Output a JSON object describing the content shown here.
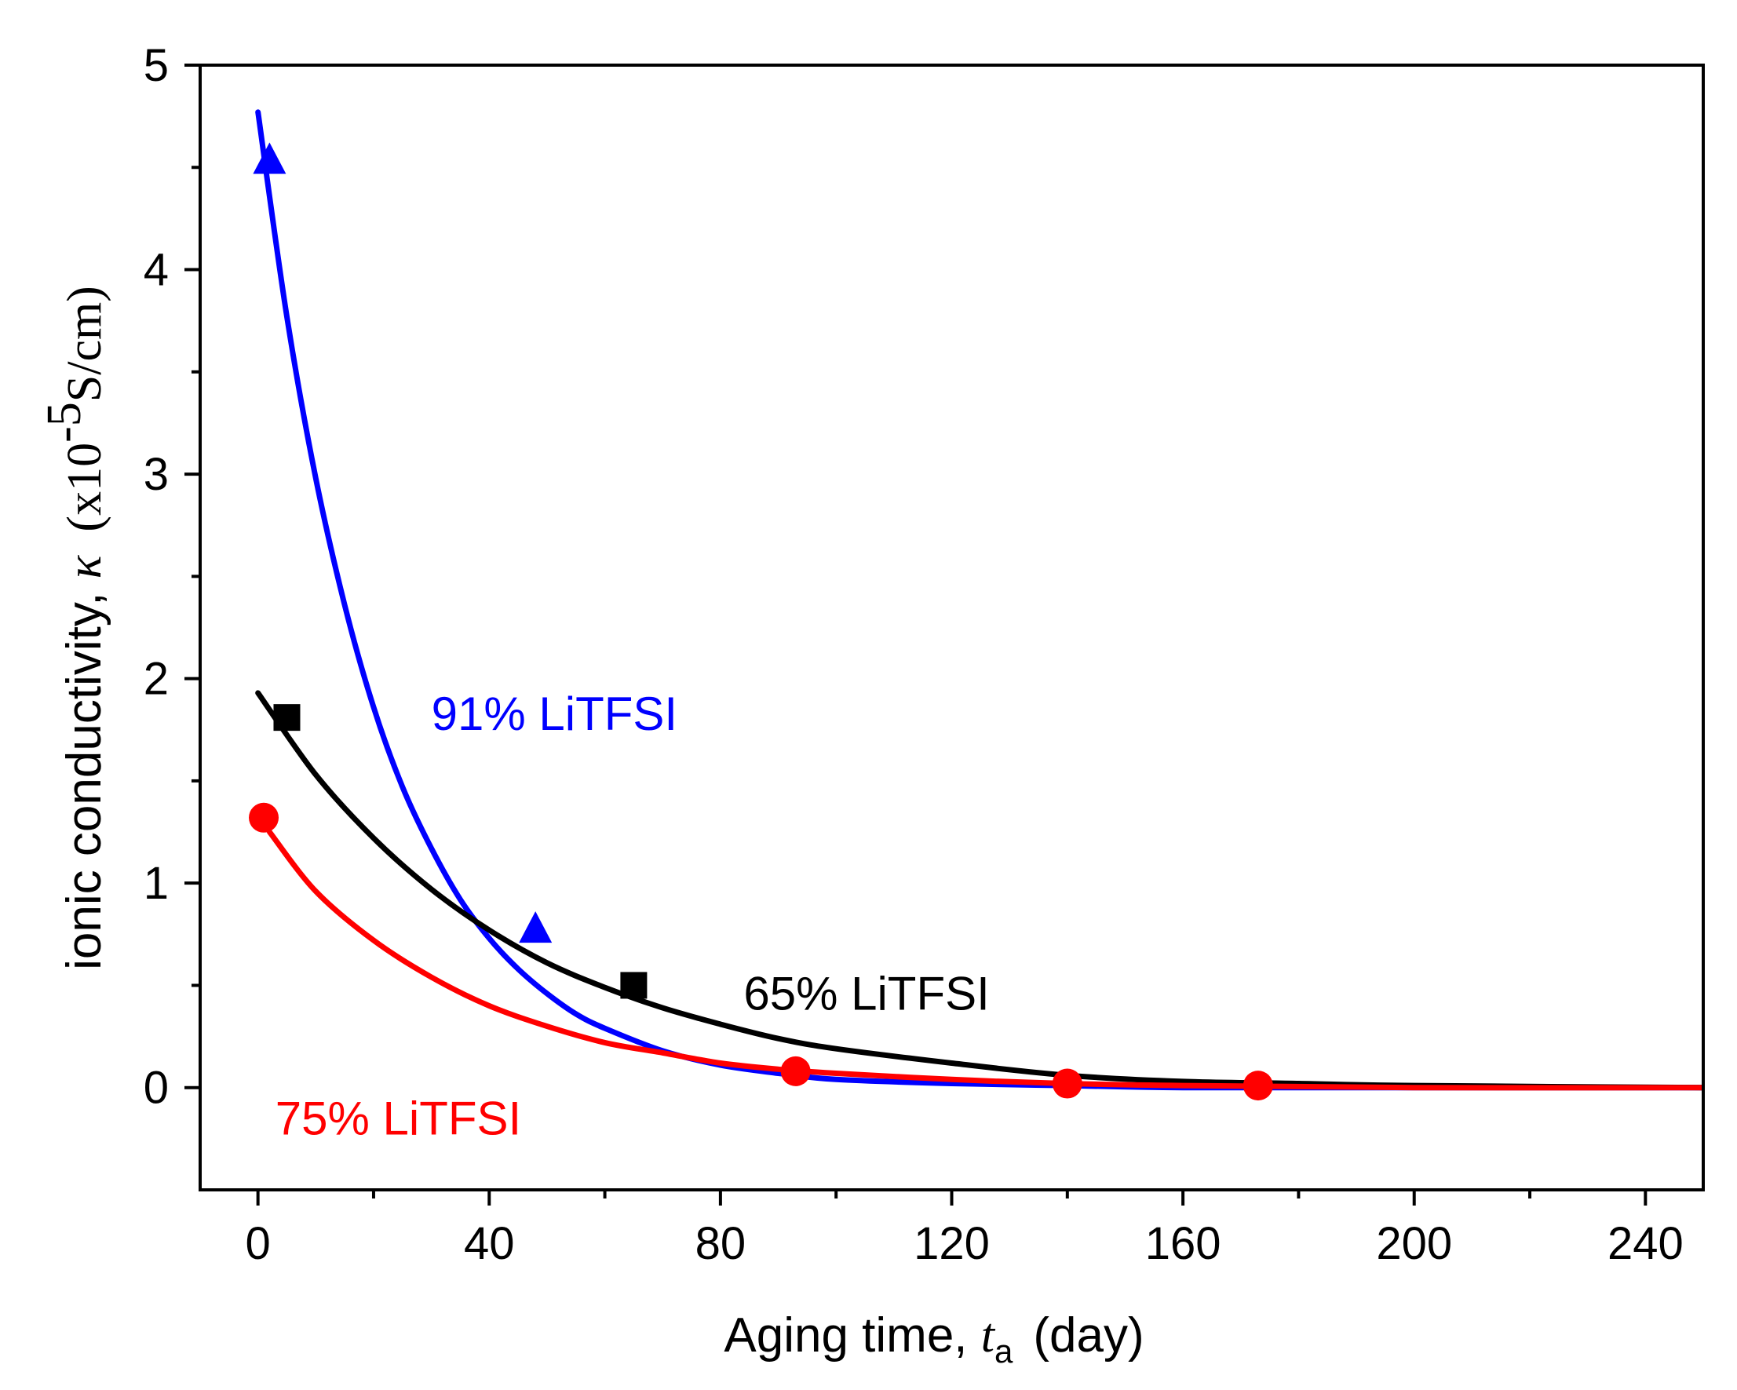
{
  "chart_data": {
    "type": "scatter",
    "title": "",
    "xlabel": {
      "prefix": "Aging time, ",
      "symbol": "t",
      "subscript": "a",
      "unit": "(day)"
    },
    "ylabel": {
      "prefix": "ionic conductivity, ",
      "symbol": "κ",
      "unit_open": "(x10",
      "unit_exp": "-5",
      "unit_close": "S/cm)"
    },
    "xlim": [
      -10,
      250
    ],
    "ylim": [
      -0.5,
      5
    ],
    "xticks": [
      0,
      40,
      80,
      120,
      160,
      200,
      240
    ],
    "xtick_labels": [
      "0",
      "40",
      "80",
      "120",
      "160",
      "200",
      "240"
    ],
    "yticks": [
      0,
      1,
      2,
      3,
      4,
      5
    ],
    "ytick_labels": [
      "0",
      "1",
      "2",
      "3",
      "4",
      "5"
    ],
    "grid": false,
    "series": [
      {
        "name": "91% LiTFSI",
        "color": "#0000ff",
        "marker": "triangle",
        "x": [
          2,
          48
        ],
        "y": [
          4.53,
          0.77
        ],
        "fit_curve": {
          "x": [
            0,
            5,
            10,
            15,
            20,
            25,
            30,
            35,
            40,
            45,
            50,
            55,
            60,
            70,
            80,
            90,
            100,
            120,
            140,
            160,
            200,
            250
          ],
          "y": [
            4.77,
            3.77,
            2.98,
            2.36,
            1.86,
            1.47,
            1.17,
            0.92,
            0.73,
            0.58,
            0.46,
            0.36,
            0.29,
            0.18,
            0.11,
            0.07,
            0.04,
            0.02,
            0.01,
            0.0,
            0.0,
            0.0
          ]
        }
      },
      {
        "name": "65% LiTFSI",
        "color": "#000000",
        "marker": "square",
        "x": [
          5,
          65
        ],
        "y": [
          1.81,
          0.5
        ],
        "fit_curve": {
          "x": [
            0,
            10,
            20,
            30,
            40,
            50,
            60,
            70,
            80,
            90,
            100,
            120,
            140,
            160,
            180,
            200,
            250
          ],
          "y": [
            1.93,
            1.53,
            1.22,
            0.97,
            0.77,
            0.61,
            0.49,
            0.39,
            0.31,
            0.24,
            0.19,
            0.12,
            0.06,
            0.03,
            0.02,
            0.01,
            0.0
          ]
        }
      },
      {
        "name": "75% LiTFSI",
        "color": "#ff0000",
        "marker": "circle",
        "x": [
          1,
          93,
          140,
          173
        ],
        "y": [
          1.32,
          0.08,
          0.02,
          0.01
        ],
        "fit_curve": {
          "x": [
            2,
            10,
            20,
            30,
            40,
            50,
            60,
            70,
            80,
            90,
            100,
            120,
            140,
            160,
            200,
            250
          ],
          "y": [
            1.25,
            0.96,
            0.72,
            0.54,
            0.4,
            0.3,
            0.22,
            0.17,
            0.12,
            0.09,
            0.07,
            0.04,
            0.02,
            0.01,
            0.0,
            0.0
          ]
        }
      }
    ],
    "annotations": [
      {
        "text": "91% LiTFSI",
        "color": "#0000ff",
        "x": 30,
        "y": 1.75
      },
      {
        "text": "65% LiTFSI",
        "color": "#000000",
        "x": 84,
        "y": 0.38
      },
      {
        "text": "75% LiTFSI",
        "color": "#ff0000",
        "x": 3,
        "y": -0.23
      }
    ]
  }
}
